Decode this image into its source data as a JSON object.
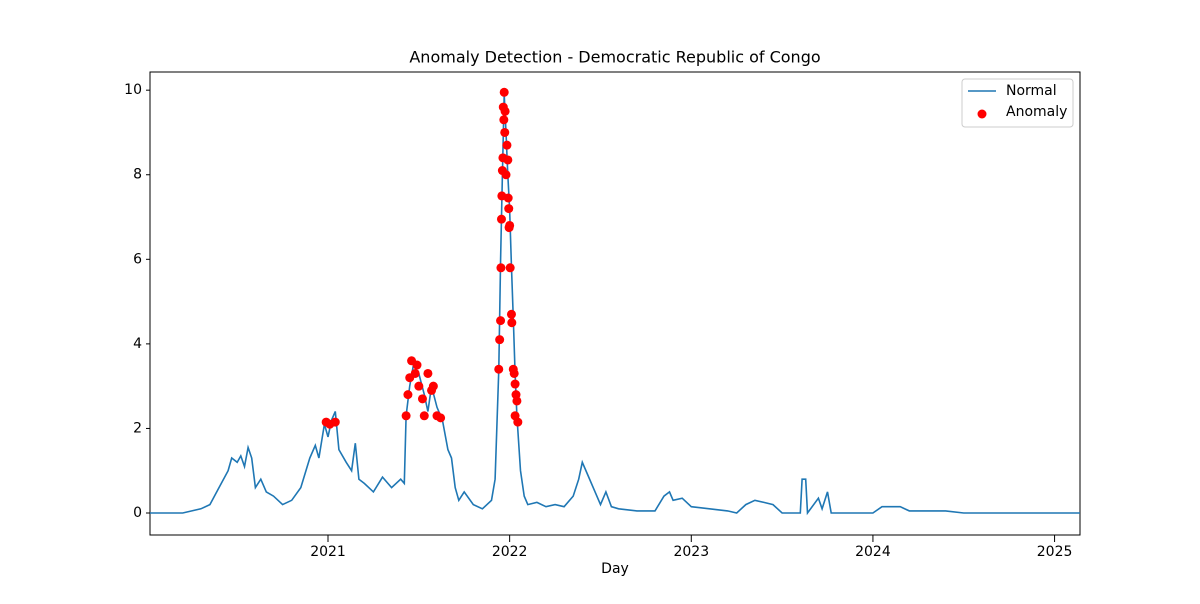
{
  "chart_data": {
    "type": "line",
    "title": "Anomaly Detection - Democratic Republic of Congo",
    "xlabel": "Day",
    "xlim": [
      2020.02,
      2025.14
    ],
    "xticks": [
      2021,
      2022,
      2023,
      2024,
      2025
    ],
    "ylim": [
      -0.52,
      10.43
    ],
    "yticks": [
      0,
      2,
      4,
      6,
      8,
      10
    ],
    "legend": "upper right",
    "grid": false,
    "series": [
      {
        "name": "Normal",
        "type": "line",
        "color": "#1f77b4",
        "x": [
          2020.02,
          2020.2,
          2020.25,
          2020.3,
          2020.35,
          2020.4,
          2020.45,
          2020.47,
          2020.5,
          2020.52,
          2020.54,
          2020.56,
          2020.58,
          2020.6,
          2020.63,
          2020.66,
          2020.7,
          2020.75,
          2020.8,
          2020.85,
          2020.9,
          2020.93,
          2020.95,
          2020.98,
          2021.0,
          2021.02,
          2021.04,
          2021.06,
          2021.1,
          2021.13,
          2021.15,
          2021.17,
          2021.2,
          2021.25,
          2021.3,
          2021.35,
          2021.4,
          2021.42,
          2021.43,
          2021.45,
          2021.47,
          2021.5,
          2021.53,
          2021.55,
          2021.57,
          2021.6,
          2021.63,
          2021.66,
          2021.68,
          2021.7,
          2021.72,
          2021.75,
          2021.8,
          2021.85,
          2021.9,
          2021.92,
          2021.94,
          2021.95,
          2021.96,
          2021.97,
          2021.98,
          2021.99,
          2022.0,
          2022.01,
          2022.02,
          2022.03,
          2022.04,
          2022.06,
          2022.08,
          2022.1,
          2022.15,
          2022.2,
          2022.25,
          2022.3,
          2022.35,
          2022.38,
          2022.4,
          2022.43,
          2022.46,
          2022.5,
          2022.53,
          2022.56,
          2022.6,
          2022.7,
          2022.8,
          2022.85,
          2022.88,
          2022.9,
          2022.95,
          2023.0,
          2023.1,
          2023.2,
          2023.25,
          2023.3,
          2023.35,
          2023.4,
          2023.45,
          2023.5,
          2023.6,
          2023.61,
          2023.63,
          2023.64,
          2023.7,
          2023.72,
          2023.75,
          2023.77,
          2024.0,
          2024.05,
          2024.15,
          2024.2,
          2024.4,
          2024.5,
          2025.14
        ],
        "values": [
          0,
          0,
          0.05,
          0.1,
          0.2,
          0.6,
          1.0,
          1.3,
          1.2,
          1.35,
          1.1,
          1.55,
          1.3,
          0.6,
          0.8,
          0.5,
          0.4,
          0.2,
          0.3,
          0.6,
          1.3,
          1.6,
          1.3,
          2.1,
          1.8,
          2.2,
          2.4,
          1.5,
          1.2,
          1.0,
          1.65,
          0.8,
          0.7,
          0.5,
          0.85,
          0.6,
          0.8,
          0.7,
          2.3,
          3.0,
          3.5,
          3.3,
          2.8,
          2.4,
          3.0,
          2.5,
          2.2,
          1.5,
          1.3,
          0.6,
          0.3,
          0.5,
          0.2,
          0.1,
          0.3,
          0.8,
          3.4,
          6.0,
          8.0,
          9.9,
          9.0,
          8.0,
          7.2,
          5.8,
          4.6,
          3.3,
          2.3,
          1.0,
          0.4,
          0.2,
          0.25,
          0.15,
          0.2,
          0.15,
          0.4,
          0.8,
          1.2,
          0.9,
          0.6,
          0.2,
          0.5,
          0.15,
          0.1,
          0.05,
          0.05,
          0.4,
          0.5,
          0.3,
          0.35,
          0.15,
          0.1,
          0.05,
          0,
          0.2,
          0.3,
          0.25,
          0.2,
          0,
          0,
          0.8,
          0.8,
          0,
          0.35,
          0.1,
          0.5,
          0,
          0,
          0.15,
          0.15,
          0.05,
          0.05,
          0,
          0
        ]
      },
      {
        "name": "Anomaly",
        "type": "scatter",
        "color": "#ff0000",
        "x": [
          2020.99,
          2021.01,
          2021.04,
          2021.43,
          2021.44,
          2021.45,
          2021.46,
          2021.48,
          2021.49,
          2021.5,
          2021.52,
          2021.53,
          2021.55,
          2021.57,
          2021.58,
          2021.6,
          2021.62,
          2021.94,
          2021.945,
          2021.95,
          2021.952,
          2021.955,
          2021.957,
          2021.96,
          2021.963,
          2021.965,
          2021.968,
          2021.97,
          2021.973,
          2021.975,
          2021.98,
          2021.985,
          2021.99,
          2021.992,
          2021.995,
          2021.997,
          2022.0,
          2022.003,
          2022.01,
          2022.012,
          2022.02,
          2022.025,
          2022.03,
          2022.035,
          2022.04,
          2022.045,
          2022.03
        ],
        "values": [
          2.15,
          2.1,
          2.15,
          2.3,
          2.8,
          3.2,
          3.6,
          3.3,
          3.5,
          3.0,
          2.7,
          2.3,
          3.3,
          2.9,
          3.0,
          2.3,
          2.25,
          3.4,
          4.1,
          4.55,
          5.8,
          6.95,
          7.5,
          8.1,
          8.4,
          9.6,
          9.3,
          9.95,
          9.0,
          9.5,
          8.0,
          8.7,
          8.35,
          7.45,
          7.2,
          6.75,
          6.8,
          5.8,
          4.7,
          4.5,
          3.4,
          3.3,
          3.05,
          2.8,
          2.65,
          2.15,
          2.3
        ]
      }
    ]
  }
}
